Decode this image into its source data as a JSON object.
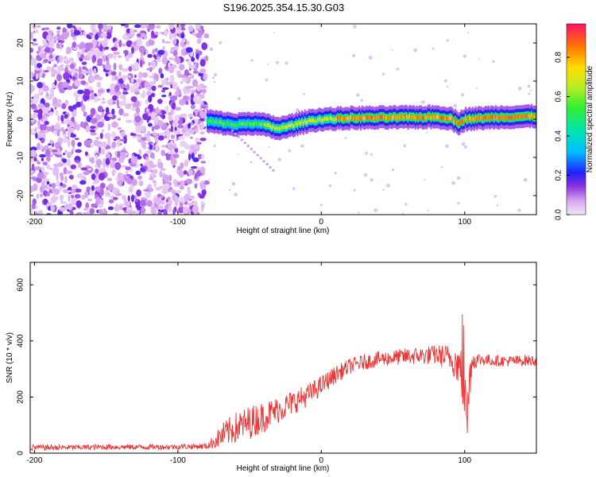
{
  "title": "S196.2025.354.15.30.G03",
  "chart_data": [
    {
      "type": "heatmap",
      "name": "spectrogram",
      "xlabel": "Height of straight line (km)",
      "ylabel": "Frequency (Hz)",
      "xlim": [
        -203,
        150
      ],
      "ylim": [
        -25,
        25
      ],
      "xticks": [
        -200,
        -100,
        0,
        100
      ],
      "yticks": [
        -20,
        -10,
        0,
        10,
        20
      ],
      "colorbar": {
        "label": "Normalized spectral amplitude",
        "range": [
          0,
          0.97
        ],
        "ticks": [
          0.0,
          0.2,
          0.4,
          0.6,
          0.8
        ]
      },
      "ridge": {
        "x": [
          -80,
          -70,
          -60,
          -50,
          -40,
          -30,
          -20,
          -10,
          0,
          20,
          40,
          60,
          80,
          90,
          95,
          100,
          120,
          150
        ],
        "frequency_hz": [
          -0.5,
          -1.0,
          -1.5,
          -1.0,
          -1.5,
          -2.5,
          -1.5,
          -0.5,
          0.0,
          0.3,
          0.4,
          0.5,
          0.6,
          0.2,
          -1.0,
          0.0,
          0.5,
          0.8
        ]
      },
      "noise_region_end_km": -80
    },
    {
      "type": "line",
      "name": "snr",
      "xlabel": "Height of straight line (km)",
      "ylabel": "SNR (10 * v/v)",
      "xlim": [
        -203,
        150
      ],
      "ylim": [
        0,
        680
      ],
      "xticks": [
        -200,
        -100,
        0,
        100
      ],
      "yticks": [
        0,
        200,
        400,
        600
      ],
      "series": [
        {
          "name": "SNR",
          "color": "#ee3333",
          "x": [
            -203,
            -180,
            -150,
            -120,
            -100,
            -80,
            -75,
            -70,
            -60,
            -50,
            -40,
            -30,
            -20,
            -10,
            0,
            10,
            20,
            30,
            40,
            50,
            60,
            70,
            80,
            90,
            95,
            98,
            100,
            102,
            105,
            110,
            120,
            130,
            140,
            150
          ],
          "y": [
            20,
            20,
            22,
            22,
            23,
            25,
            40,
            60,
            90,
            110,
            130,
            155,
            180,
            205,
            240,
            280,
            310,
            325,
            335,
            340,
            345,
            348,
            350,
            340,
            320,
            280,
            380,
            200,
            330,
            335,
            330,
            328,
            330,
            330
          ],
          "spread": [
            14,
            12,
            12,
            12,
            12,
            14,
            30,
            55,
            70,
            75,
            70,
            60,
            55,
            50,
            45,
            40,
            35,
            35,
            35,
            35,
            38,
            40,
            45,
            60,
            90,
            140,
            200,
            160,
            50,
            30,
            25,
            25,
            25,
            25
          ]
        }
      ]
    }
  ]
}
